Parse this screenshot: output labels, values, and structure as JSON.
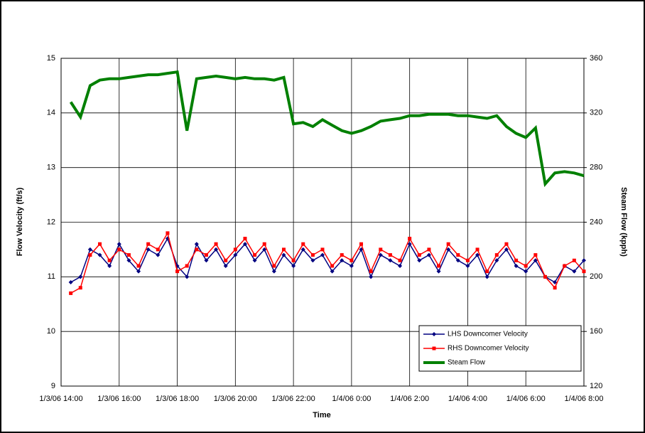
{
  "chart_data": {
    "type": "line",
    "x_label": "Time",
    "y_label": "Flow Velocity (ft/s)",
    "y2_label": "Steam Flow (kpph)",
    "x": [
      "2006-01-03 14:20",
      "2006-01-03 14:40",
      "2006-01-03 15:00",
      "2006-01-03 15:20",
      "2006-01-03 15:40",
      "2006-01-03 16:00",
      "2006-01-03 16:20",
      "2006-01-03 16:40",
      "2006-01-03 17:00",
      "2006-01-03 17:20",
      "2006-01-03 17:40",
      "2006-01-03 18:00",
      "2006-01-03 18:20",
      "2006-01-03 18:40",
      "2006-01-03 19:00",
      "2006-01-03 19:20",
      "2006-01-03 19:40",
      "2006-01-03 20:00",
      "2006-01-03 20:20",
      "2006-01-03 20:40",
      "2006-01-03 21:00",
      "2006-01-03 21:20",
      "2006-01-03 21:40",
      "2006-01-03 22:00",
      "2006-01-03 22:20",
      "2006-01-03 22:40",
      "2006-01-03 23:00",
      "2006-01-03 23:20",
      "2006-01-03 23:40",
      "2006-01-04 00:00",
      "2006-01-04 00:20",
      "2006-01-04 00:40",
      "2006-01-04 01:00",
      "2006-01-04 01:20",
      "2006-01-04 01:40",
      "2006-01-04 02:00",
      "2006-01-04 02:20",
      "2006-01-04 02:40",
      "2006-01-04 03:00",
      "2006-01-04 03:20",
      "2006-01-04 03:40",
      "2006-01-04 04:00",
      "2006-01-04 04:20",
      "2006-01-04 04:40",
      "2006-01-04 05:00",
      "2006-01-04 05:20",
      "2006-01-04 05:40",
      "2006-01-04 06:00",
      "2006-01-04 06:20",
      "2006-01-04 06:40",
      "2006-01-04 07:00",
      "2006-01-04 07:20",
      "2006-01-04 07:40",
      "2006-01-04 08:00"
    ],
    "series": [
      {
        "name": "LHS Downcomer Velocity",
        "color": "#000080",
        "marker": "diamond",
        "values": [
          10.9,
          11.0,
          11.5,
          11.4,
          11.2,
          11.6,
          11.3,
          11.1,
          11.5,
          11.4,
          11.7,
          11.2,
          11.0,
          11.6,
          11.3,
          11.5,
          11.2,
          11.4,
          11.6,
          11.3,
          11.5,
          11.1,
          11.4,
          11.2,
          11.5,
          11.3,
          11.4,
          11.1,
          11.3,
          11.2,
          11.5,
          11.0,
          11.4,
          11.3,
          11.2,
          11.6,
          11.3,
          11.4,
          11.1,
          11.5,
          11.3,
          11.2,
          11.4,
          11.0,
          11.3,
          11.5,
          11.2,
          11.1,
          11.3,
          11.0,
          10.9,
          11.2,
          11.1,
          11.3
        ]
      },
      {
        "name": "RHS Downcomer Velocity",
        "color": "#ff0000",
        "marker": "square",
        "values": [
          10.7,
          10.8,
          11.4,
          11.6,
          11.3,
          11.5,
          11.4,
          11.2,
          11.6,
          11.5,
          11.8,
          11.1,
          11.2,
          11.5,
          11.4,
          11.6,
          11.3,
          11.5,
          11.7,
          11.4,
          11.6,
          11.2,
          11.5,
          11.3,
          11.6,
          11.4,
          11.5,
          11.2,
          11.4,
          11.3,
          11.6,
          11.1,
          11.5,
          11.4,
          11.3,
          11.7,
          11.4,
          11.5,
          11.2,
          11.6,
          11.4,
          11.3,
          11.5,
          11.1,
          11.4,
          11.6,
          11.3,
          11.2,
          11.4,
          11.0,
          10.8,
          11.2,
          11.3,
          11.1
        ]
      },
      {
        "name": "Steam Flow",
        "color": "#008000",
        "axis": "y2",
        "values": [
          328,
          317,
          340,
          344,
          345,
          345,
          346,
          347,
          348,
          348,
          349,
          350,
          307,
          345,
          346,
          347,
          346,
          345,
          346,
          345,
          345,
          344,
          346,
          312,
          313,
          310,
          315,
          311,
          307,
          305,
          307,
          310,
          314,
          315,
          316,
          318,
          318,
          319,
          319,
          319,
          318,
          318,
          317,
          316,
          318,
          310,
          305,
          302,
          309,
          268,
          276,
          277,
          276,
          274
        ]
      }
    ],
    "xlim": [
      "2006-01-03 14:00",
      "2006-01-04 08:00"
    ],
    "xticks": [
      {
        "value": "2006-01-03 14:00",
        "label": "1/3/06 14:00"
      },
      {
        "value": "2006-01-03 16:00",
        "label": "1/3/06 16:00"
      },
      {
        "value": "2006-01-03 18:00",
        "label": "1/3/06 18:00"
      },
      {
        "value": "2006-01-03 20:00",
        "label": "1/3/06 20:00"
      },
      {
        "value": "2006-01-03 22:00",
        "label": "1/3/06 22:00"
      },
      {
        "value": "2006-01-04 00:00",
        "label": "1/4/06 0:00"
      },
      {
        "value": "2006-01-04 02:00",
        "label": "1/4/06 2:00"
      },
      {
        "value": "2006-01-04 04:00",
        "label": "1/4/06 4:00"
      },
      {
        "value": "2006-01-04 06:00",
        "label": "1/4/06 6:00"
      },
      {
        "value": "2006-01-04 08:00",
        "label": "1/4/06 8:00"
      }
    ],
    "ylim": [
      9,
      15
    ],
    "yticks": [
      9,
      10,
      11,
      12,
      13,
      14,
      15
    ],
    "y2lim": [
      120,
      360
    ],
    "y2ticks": [
      120,
      160,
      200,
      240,
      280,
      320,
      360
    ],
    "grid": true,
    "legend": "lower right"
  }
}
